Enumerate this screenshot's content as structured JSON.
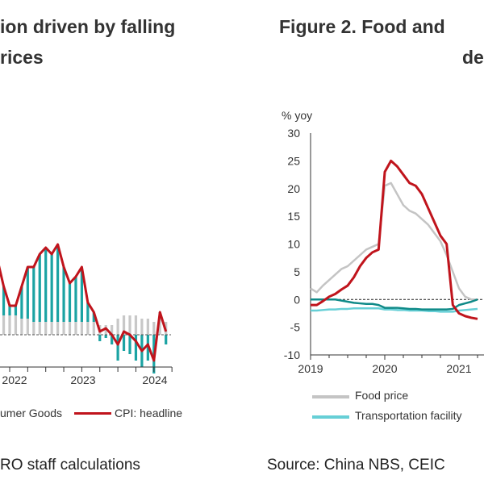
{
  "left_panel": {
    "title_line1": "ion driven by falling",
    "title_line2": "rices",
    "source": "RO staff calculations",
    "legend": [
      {
        "label": "umer Goods",
        "color": "#c8c8c8"
      },
      {
        "label": "CPI: headline",
        "color": "#c0141c"
      }
    ]
  },
  "right_panel": {
    "title_line1": "Figure 2.   Food and",
    "title_line2": "de",
    "source": "Source: China NBS, CEIC",
    "legend": [
      {
        "label": "Food price",
        "color": "#c4c4c4"
      },
      {
        "label": "Transportation facility",
        "color": "#66cfd6"
      }
    ]
  },
  "chart_data": [
    {
      "type": "bar",
      "xlabel": "",
      "ylabel": "",
      "x_tick_labels": [
        "2022",
        "2023",
        "2024"
      ],
      "months": [
        "2021-11",
        "2021-12",
        "2022-01",
        "2022-02",
        "2022-03",
        "2022-04",
        "2022-05",
        "2022-06",
        "2022-07",
        "2022-08",
        "2022-09",
        "2022-10",
        "2022-11",
        "2022-12",
        "2023-01",
        "2023-02",
        "2023-03",
        "2023-04",
        "2023-05",
        "2023-06",
        "2023-07",
        "2023-08",
        "2023-09",
        "2023-10",
        "2023-11",
        "2023-12",
        "2024-01",
        "2024-02",
        "2024-03"
      ],
      "series": [
        {
          "name": "CPI: headline",
          "kind": "line",
          "color": "#c0141c",
          "values": [
            2.3,
            1.5,
            0.9,
            0.9,
            1.5,
            2.1,
            2.1,
            2.5,
            2.7,
            2.5,
            2.8,
            2.1,
            1.6,
            1.8,
            2.1,
            1.0,
            0.7,
            0.1,
            0.2,
            0.0,
            -0.3,
            0.1,
            0.0,
            -0.2,
            -0.5,
            -0.3,
            -0.8,
            0.7,
            0.1
          ]
        },
        {
          "name": "umer Goods",
          "kind": "bar",
          "color": "#c8c8c8",
          "values": [
            0.6,
            0.6,
            0.6,
            0.6,
            0.5,
            0.5,
            0.4,
            0.4,
            0.4,
            0.4,
            0.4,
            0.4,
            0.4,
            0.4,
            0.4,
            0.4,
            0.4,
            0.3,
            0.3,
            0.3,
            0.5,
            0.6,
            0.6,
            0.6,
            0.5,
            0.5,
            0.4,
            0.6,
            0.4
          ]
        },
        {
          "kind": "bar",
          "color": "#1ba3a3",
          "values": [
            1.7,
            0.9,
            0.3,
            0.3,
            1.0,
            1.6,
            1.7,
            2.1,
            2.3,
            2.1,
            2.4,
            1.7,
            1.2,
            1.4,
            1.7,
            0.6,
            0.3,
            -0.2,
            -0.1,
            -0.3,
            -0.8,
            -0.5,
            -0.6,
            -0.8,
            -1.0,
            -0.8,
            -1.2,
            0.1,
            -0.3
          ]
        }
      ]
    },
    {
      "type": "line",
      "ylabel": "% yoy",
      "ylim": [
        -10,
        30
      ],
      "y_ticks": [
        30,
        25,
        20,
        15,
        10,
        5,
        0,
        -5,
        -10
      ],
      "x_tick_labels": [
        "2019",
        "2020",
        "2021"
      ],
      "x_start": "2019-01",
      "series": [
        {
          "name": "Food price",
          "color": "#c4c4c4",
          "values": [
            2,
            1.3,
            2.5,
            3.5,
            4.5,
            5.5,
            6,
            7,
            8,
            9,
            9.5,
            10,
            20.5,
            21,
            19,
            17,
            16,
            15.5,
            14.5,
            13.5,
            12,
            10.5,
            8,
            5,
            2,
            0.5,
            0,
            0
          ]
        },
        {
          "name": "Transportation facility",
          "color": "#66cfd6",
          "values": [
            -2,
            -2,
            -1.9,
            -1.8,
            -1.8,
            -1.7,
            -1.7,
            -1.6,
            -1.6,
            -1.6,
            -1.6,
            -1.6,
            -1.8,
            -1.8,
            -1.9,
            -1.9,
            -2,
            -2,
            -2,
            -2.1,
            -2.1,
            -2.2,
            -2.2,
            -2.2,
            -2,
            -1.9,
            -1.8,
            -1.7
          ]
        },
        {
          "color": "#c0141c",
          "values": [
            -1,
            -1,
            -0.3,
            0.5,
            1,
            1.8,
            2.5,
            4,
            6,
            7.5,
            8.5,
            9,
            23,
            25,
            24,
            22.5,
            21,
            20.5,
            19,
            16.5,
            14,
            11.5,
            10,
            -1,
            -2.5,
            -3,
            -3.3,
            -3.5
          ]
        },
        {
          "color": "#0f8a88",
          "values": [
            0,
            0,
            0,
            0,
            0,
            -0.2,
            -0.4,
            -0.6,
            -0.7,
            -0.8,
            -0.8,
            -1,
            -1.5,
            -1.5,
            -1.5,
            -1.6,
            -1.7,
            -1.7,
            -1.8,
            -1.8,
            -1.8,
            -1.8,
            -1.8,
            -1.7,
            -1,
            -0.7,
            -0.4,
            0
          ]
        }
      ]
    }
  ]
}
